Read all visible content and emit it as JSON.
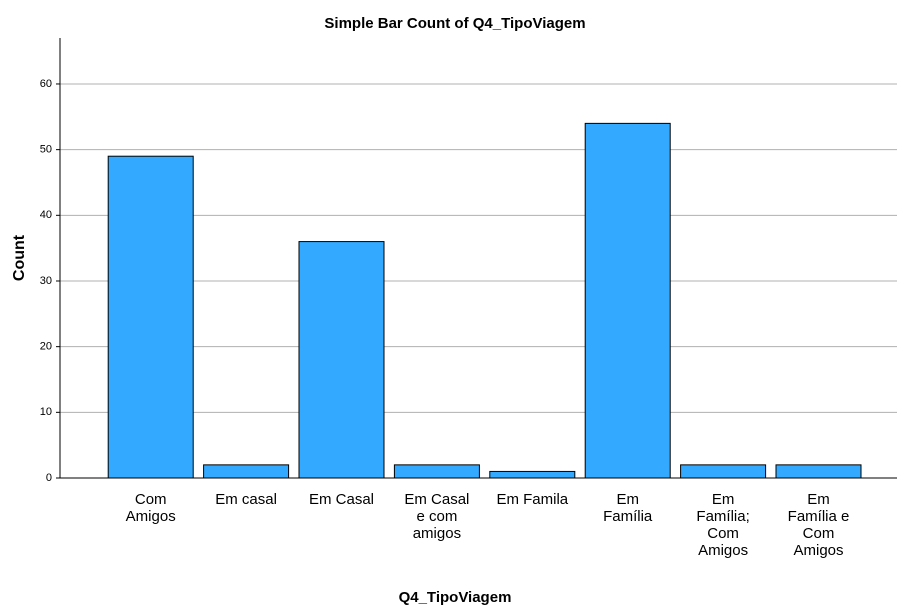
{
  "chart_data": {
    "type": "bar",
    "title": "Simple Bar Count of Q4_TipoViagem",
    "x_label": "Q4_TipoViagem",
    "y_label": "Count",
    "categories": [
      "Com\nAmigos",
      "Em casal",
      "Em Casal",
      "Em Casal\ne com\namigos",
      "Em Famila",
      "Em\nFamília",
      "Em\nFamília;\nCom\nAmigos",
      "Em\nFamília e\nCom\nAmigos"
    ],
    "values": [
      49,
      2,
      36,
      2,
      1,
      54,
      2,
      2
    ],
    "color": "#33aaff",
    "ylim": [
      0,
      67
    ],
    "yticks": [
      0,
      10,
      20,
      30,
      40,
      50,
      60
    ],
    "grid": true
  }
}
